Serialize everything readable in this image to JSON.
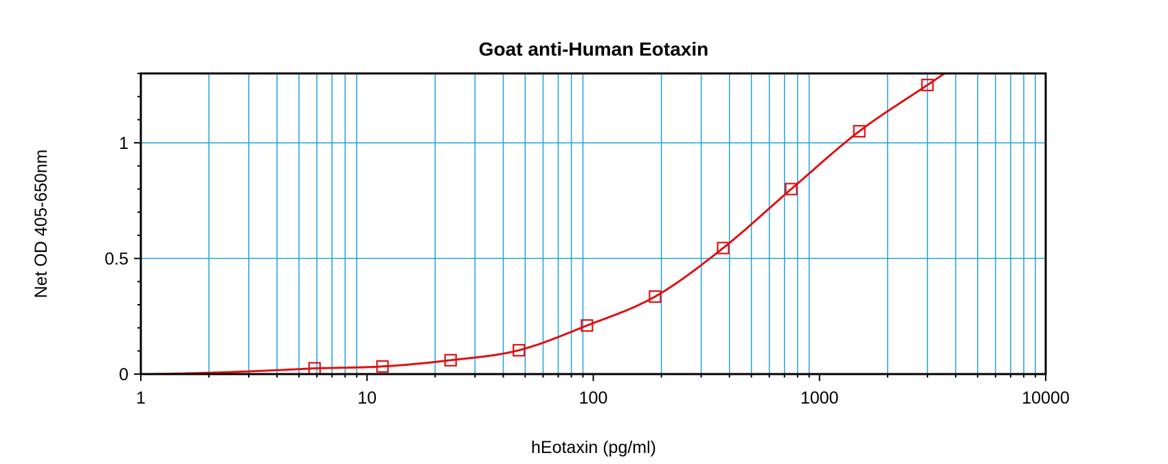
{
  "chart_data": {
    "type": "scatter",
    "title": "Goat anti-Human Eotaxin",
    "xlabel": "hEotaxin (pg/ml)",
    "ylabel": "Net OD 405-650nm",
    "xscale": "log",
    "xlim": [
      1,
      10000
    ],
    "ylim": [
      0,
      1.3
    ],
    "x_ticks": [
      1,
      10,
      100,
      1000,
      10000
    ],
    "x_tick_labels": [
      "1",
      "10",
      "100",
      "1000",
      "10000"
    ],
    "y_ticks": [
      0,
      0.5,
      1
    ],
    "y_tick_labels": [
      "0",
      "0.5",
      "1"
    ],
    "grid": true,
    "grid_color": "#1ea0dc",
    "series_color": "#e01010",
    "marker": "open-square",
    "series": [
      {
        "x": [
          5.86,
          11.7,
          23.4,
          46.9,
          93.8,
          187.5,
          375,
          750,
          1500,
          3000
        ],
        "y": [
          0.025,
          0.033,
          0.06,
          0.103,
          0.21,
          0.335,
          0.545,
          0.8,
          1.05,
          1.25
        ]
      }
    ],
    "fit_curve": true
  }
}
